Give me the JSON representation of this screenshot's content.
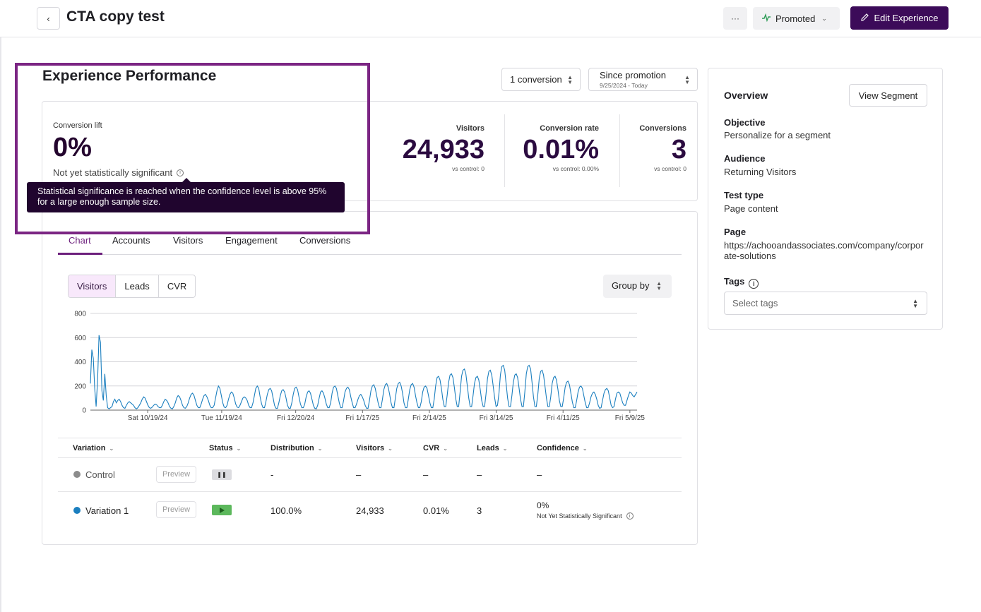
{
  "header": {
    "back_icon": "chevron-left-icon",
    "title": "CTA copy test",
    "more_label": "···",
    "status_label": "Promoted",
    "edit_label": "Edit Experience"
  },
  "performance": {
    "title": "Experience Performance",
    "conversion_select": "1 conversion",
    "date_select": {
      "label": "Since promotion",
      "sub": "9/25/2024 - Today"
    },
    "lift_label": "Conversion lift",
    "lift_value": "0%",
    "lift_note": "Not yet statistically significant",
    "tooltip": "Statistical significance is reached when the confidence level is above 95% for a large enough sample size.",
    "metrics": [
      {
        "label": "Visitors",
        "value": "24,933",
        "vs": "vs control: 0"
      },
      {
        "label": "Conversion rate",
        "value": "0.01%",
        "vs": "vs control: 0.00%"
      },
      {
        "label": "Conversions",
        "value": "3",
        "vs": "vs control: 0"
      }
    ]
  },
  "tabs": [
    "Chart",
    "Accounts",
    "Visitors",
    "Engagement",
    "Conversions"
  ],
  "chart_controls": {
    "segments": [
      "Visitors",
      "Leads",
      "CVR"
    ],
    "active_segment": "Visitors",
    "group_by": "Group by"
  },
  "chart_data": {
    "type": "line",
    "ylim": [
      0,
      800
    ],
    "yticks": [
      0,
      200,
      400,
      600,
      800
    ],
    "xticks": [
      "Sat 10/19/24",
      "Tue 11/19/24",
      "Fri 12/20/24",
      "Fri 1/17/25",
      "Fri 2/14/25",
      "Fri 3/14/25",
      "Fri 4/11/25",
      "Fri 5/9/25"
    ],
    "x_range": [
      "2024-09-25",
      "2025-05-12"
    ],
    "grid": true,
    "color": "#1b7fbf",
    "series": [
      {
        "values": [
          220,
          500,
          430,
          180,
          30,
          250,
          620,
          560,
          160,
          80,
          300,
          120,
          20,
          10,
          20,
          30,
          70,
          90,
          60,
          80,
          90,
          70,
          40,
          20,
          15,
          40,
          60,
          70,
          60,
          50,
          40,
          20,
          10,
          20,
          40,
          60,
          90,
          110,
          100,
          70,
          40,
          20,
          15,
          25,
          40,
          50,
          45,
          30,
          20,
          20,
          40,
          70,
          90,
          80,
          60,
          30,
          15,
          10,
          30,
          60,
          100,
          120,
          110,
          80,
          40,
          20,
          15,
          30,
          60,
          100,
          130,
          140,
          120,
          80,
          40,
          20,
          20,
          50,
          90,
          120,
          130,
          110,
          80,
          40,
          20,
          20,
          40,
          100,
          160,
          200,
          180,
          120,
          60,
          25,
          20,
          40,
          90,
          130,
          150,
          140,
          100,
          50,
          25,
          20,
          40,
          70,
          100,
          110,
          100,
          80,
          40,
          20,
          20,
          60,
          120,
          180,
          200,
          180,
          110,
          50,
          20,
          20,
          70,
          130,
          170,
          180,
          160,
          100,
          40,
          15,
          15,
          60,
          120,
          160,
          170,
          150,
          100,
          40,
          15,
          15,
          60,
          130,
          180,
          190,
          170,
          110,
          50,
          20,
          20,
          50,
          110,
          150,
          160,
          140,
          90,
          40,
          15,
          10,
          40,
          100,
          150,
          160,
          140,
          100,
          50,
          20,
          20,
          60,
          140,
          190,
          200,
          180,
          120,
          60,
          20,
          20,
          80,
          150,
          180,
          190,
          170,
          110,
          60,
          20,
          20,
          50,
          90,
          120,
          130,
          110,
          80,
          40,
          15,
          15,
          80,
          160,
          200,
          210,
          180,
          120,
          60,
          20,
          20,
          90,
          170,
          210,
          220,
          190,
          130,
          60,
          20,
          20,
          100,
          180,
          220,
          230,
          200,
          140,
          60,
          20,
          20,
          90,
          170,
          210,
          220,
          190,
          120,
          60,
          20,
          20,
          70,
          150,
          190,
          200,
          180,
          120,
          60,
          20,
          20,
          90,
          200,
          270,
          280,
          250,
          180,
          90,
          30,
          30,
          120,
          230,
          290,
          300,
          270,
          190,
          90,
          30,
          30,
          150,
          280,
          330,
          340,
          300,
          200,
          100,
          30,
          30,
          120,
          220,
          270,
          280,
          250,
          170,
          80,
          30,
          30,
          130,
          260,
          320,
          330,
          290,
          200,
          100,
          30,
          40,
          140,
          290,
          360,
          370,
          330,
          220,
          100,
          30,
          30,
          120,
          230,
          290,
          300,
          270,
          180,
          90,
          30,
          30,
          150,
          300,
          360,
          370,
          340,
          230,
          110,
          30,
          30,
          130,
          260,
          320,
          330,
          290,
          200,
          100,
          30,
          30,
          110,
          220,
          270,
          280,
          250,
          170,
          80,
          30,
          30,
          100,
          190,
          230,
          240,
          210,
          140,
          70,
          20,
          20,
          80,
          150,
          190,
          200,
          180,
          120,
          60,
          20,
          20,
          60,
          110,
          140,
          150,
          130,
          90,
          40,
          15,
          20,
          80,
          140,
          170,
          180,
          160,
          100,
          40,
          20,
          30,
          90,
          140,
          150,
          140,
          100,
          60,
          40,
          40,
          80,
          120,
          150,
          140,
          120,
          110,
          130,
          150
        ]
      }
    ]
  },
  "table": {
    "columns": [
      "Variation",
      "Status",
      "Distribution",
      "Visitors",
      "CVR",
      "Leads",
      "Confidence"
    ],
    "rows": [
      {
        "name": "Control",
        "dot_color": "#8c8c8c",
        "preview": "Preview",
        "status": "paused",
        "distribution": "-",
        "visitors": "–",
        "cvr": "–",
        "leads": "–",
        "confidence": "–",
        "confidence_note": ""
      },
      {
        "name": "Variation 1",
        "dot_color": "#1b7fbf",
        "preview": "Preview",
        "status": "running",
        "distribution": "100.0%",
        "visitors": "24,933",
        "cvr": "0.01%",
        "leads": "3",
        "confidence": "0%",
        "confidence_note": "Not Yet Statistically Significant"
      }
    ]
  },
  "overview": {
    "title": "Overview",
    "view_segment": "View Segment",
    "fields": [
      {
        "label": "Objective",
        "value": "Personalize for a segment"
      },
      {
        "label": "Audience",
        "value": "Returning Visitors"
      },
      {
        "label": "Test type",
        "value": "Page content"
      },
      {
        "label": "Page",
        "value": "https://achooandassociates.com/company/corporate-solutions"
      }
    ],
    "tags_label": "Tags",
    "tags_placeholder": "Select tags"
  },
  "colors": {
    "brand": "#3c0b59",
    "accent": "#6c1f7c",
    "highlight": "#7b2583",
    "running": "#5cb85c"
  }
}
